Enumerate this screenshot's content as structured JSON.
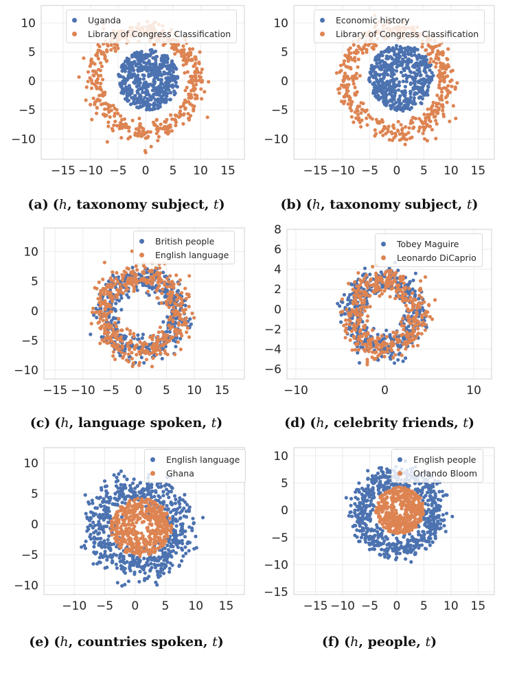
{
  "colors": {
    "blue": "#4c72b0",
    "orange": "#dd8452",
    "grid": "#ebebeb",
    "spine": "#cfcfcf"
  },
  "chart_data": [
    {
      "type": "scatter",
      "caption": {
        "label": "(a)",
        "h": "h",
        "rel": "taxonomy subject",
        "t": "t"
      },
      "xlim": [
        -19,
        18
      ],
      "ylim": [
        -13.5,
        13
      ],
      "xticks": [
        -15,
        -10,
        -5,
        0,
        5,
        10,
        15
      ],
      "yticks": [
        -10,
        -5,
        0,
        5,
        10
      ],
      "legend_loc": "top-right",
      "series": [
        {
          "name": "Uganda",
          "color": "#4c72b0",
          "shape": "disk",
          "center": [
            0.5,
            0.2
          ],
          "r_inner": 0.5,
          "r_outer": 5.5,
          "n": 520,
          "seed": 11
        },
        {
          "name": "Library of Congress Classification",
          "color": "#dd8452",
          "shape": "ring",
          "center": [
            0.0,
            0.0
          ],
          "r_inner": 6.5,
          "r_outer": 11.5,
          "n": 470,
          "seed": 12
        }
      ]
    },
    {
      "type": "scatter",
      "caption": {
        "label": "(b)",
        "h": "h",
        "rel": "taxonomy subject",
        "t": "t"
      },
      "xlim": [
        -19,
        18
      ],
      "ylim": [
        -13.5,
        13
      ],
      "xticks": [
        -15,
        -10,
        -5,
        0,
        5,
        10,
        15
      ],
      "yticks": [
        -10,
        -5,
        0,
        5,
        10
      ],
      "legend_loc": "top-right",
      "series": [
        {
          "name": "Economic history",
          "color": "#4c72b0",
          "shape": "disk",
          "center": [
            0.8,
            0.5
          ],
          "r_inner": 0.5,
          "r_outer": 6.0,
          "n": 520,
          "seed": 21
        },
        {
          "name": "Library of Congress Classification",
          "color": "#dd8452",
          "shape": "ring",
          "center": [
            0.0,
            0.0
          ],
          "r_inner": 6.5,
          "r_outer": 11.5,
          "n": 470,
          "seed": 22
        }
      ]
    },
    {
      "type": "scatter",
      "caption": {
        "label": "(c)",
        "h": "h",
        "rel": "language spoken",
        "t": "t"
      },
      "xlim": [
        -17,
        19
      ],
      "ylim": [
        -11.5,
        14
      ],
      "xticks": [
        -15,
        -10,
        -5,
        0,
        5,
        10,
        15
      ],
      "yticks": [
        -10,
        -5,
        0,
        5,
        10
      ],
      "legend_loc": "top-right",
      "series": [
        {
          "name": "British people",
          "color": "#4c72b0",
          "shape": "ring",
          "center": [
            0.5,
            -0.5
          ],
          "r_inner": 3.0,
          "r_outer": 9.5,
          "n": 440,
          "seed": 31
        },
        {
          "name": "English language",
          "color": "#dd8452",
          "shape": "ring",
          "center": [
            0.5,
            -0.5
          ],
          "r_inner": 3.5,
          "r_outer": 10.0,
          "n": 480,
          "seed": 32
        }
      ]
    },
    {
      "type": "scatter",
      "caption": {
        "label": "(d)",
        "h": "h",
        "rel": "celebrity friends",
        "t": "t"
      },
      "xlim": [
        -11,
        12
      ],
      "ylim": [
        -7,
        8
      ],
      "xticks": [
        -10,
        0,
        10
      ],
      "yticks": [
        -6,
        -4,
        -2,
        0,
        2,
        4,
        6,
        8
      ],
      "legend_loc": "top-right",
      "series": [
        {
          "name": "Tobey Maguire",
          "color": "#4c72b0",
          "shape": "ring",
          "center": [
            0.0,
            -0.5
          ],
          "r_inner": 1.5,
          "r_outer": 5.5,
          "n": 430,
          "seed": 41
        },
        {
          "name": "Leonardo DiCaprio",
          "color": "#dd8452",
          "shape": "ring",
          "center": [
            0.0,
            -0.5
          ],
          "r_inner": 1.5,
          "r_outer": 5.5,
          "n": 430,
          "seed": 42
        }
      ]
    },
    {
      "type": "scatter",
      "caption": {
        "label": "(e)",
        "h": "h",
        "rel": "countries spoken",
        "t": "t"
      },
      "xlim": [
        -15,
        18
      ],
      "ylim": [
        -11.5,
        12.5
      ],
      "xticks": [
        -10,
        -5,
        0,
        5,
        10,
        15
      ],
      "yticks": [
        -10,
        -5,
        0,
        5,
        10
      ],
      "legend_loc": "top-right",
      "series": [
        {
          "name": "English language",
          "color": "#4c72b0",
          "shape": "ring",
          "center": [
            0.5,
            -0.5
          ],
          "r_inner": 2.5,
          "r_outer": 10.5,
          "n": 650,
          "seed": 51
        },
        {
          "name": "Ghana",
          "color": "#dd8452",
          "shape": "disk",
          "center": [
            1.0,
            -0.5
          ],
          "r_inner": 0.6,
          "r_outer": 5.0,
          "n": 480,
          "seed": 52
        }
      ]
    },
    {
      "type": "scatter",
      "caption": {
        "label": "(f)",
        "h": "h",
        "rel": "people",
        "t": "t"
      },
      "xlim": [
        -19,
        18
      ],
      "ylim": [
        -15.5,
        11.5
      ],
      "xticks": [
        -15,
        -10,
        -5,
        0,
        5,
        10,
        15
      ],
      "yticks": [
        -15,
        -10,
        -5,
        0,
        5,
        10
      ],
      "legend_loc": "top-right",
      "series": [
        {
          "name": "English people",
          "color": "#4c72b0",
          "shape": "ring",
          "center": [
            0.3,
            -0.5
          ],
          "r_inner": 3.5,
          "r_outer": 10.0,
          "n": 620,
          "seed": 61
        },
        {
          "name": "Orlando Bloom",
          "color": "#dd8452",
          "shape": "disk",
          "center": [
            0.5,
            0.0
          ],
          "r_inner": 0.5,
          "r_outer": 4.5,
          "n": 470,
          "seed": 62
        }
      ]
    }
  ]
}
